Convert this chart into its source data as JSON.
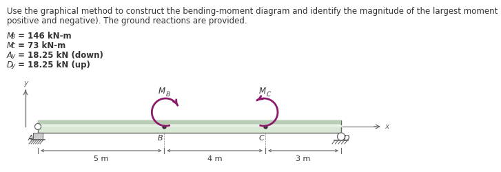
{
  "title_line1": "Use the graphical method to construct the bending-moment diagram and identify the magnitude of the largest moment (consider both",
  "title_line2": "positive and negative). The ground reactions are provided.",
  "eq1": "M",
  "eq1_sub": "B",
  "eq1_val": " = 146 kN-m",
  "eq2": "M",
  "eq2_sub": "C",
  "eq2_val": " = 73 kN-m",
  "eq3": "A",
  "eq3_sub": "y",
  "eq3_val": " = 18.25 kN (down)",
  "eq4": "D",
  "eq4_sub": "y",
  "eq4_val": " = 18.25 kN (up)",
  "segment_labels": [
    "5 m",
    "4 m",
    "3 m"
  ],
  "point_labels": [
    "A",
    "B",
    "C",
    "D"
  ],
  "beam_color_light": "#d8e8d4",
  "beam_color_mid": "#c0d4bc",
  "beam_outline": "#666666",
  "moment_color": "#8B1A6B",
  "axis_color": "#666666",
  "text_color": "#333333",
  "bg_color": "#ffffff",
  "support_color": "#888888"
}
